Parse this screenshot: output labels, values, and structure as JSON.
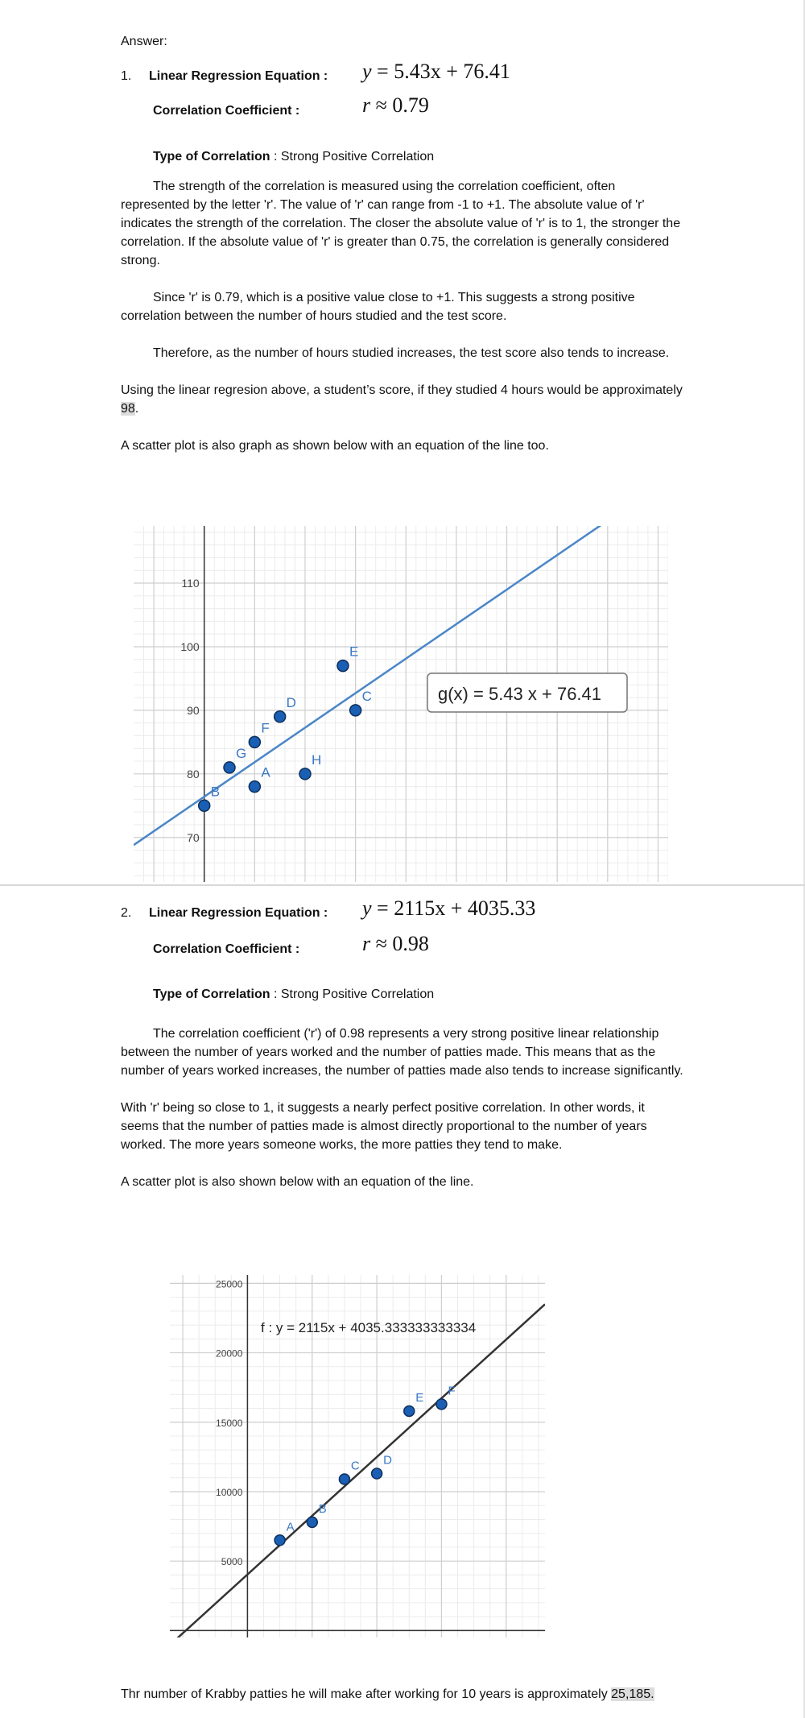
{
  "answer_label": "Answer:",
  "q1": {
    "number": "1.",
    "regression_label": "Linear Regression Equation :",
    "regression_eq": {
      "lhs": "y",
      "rhs": "= 5.43x + 76.41"
    },
    "corr_label": "Correlation Coefficient :",
    "corr_eq": {
      "lhs": "r",
      "rhs": "≈ 0.79"
    },
    "type_label": "Type of Correlation",
    "type_value": " : Strong Positive Correlation",
    "para1": "The strength of the correlation is measured using the correlation coefficient, often represented by the letter 'r'. The value of 'r' can range from -1 to +1. The absolute value of 'r' indicates the strength of the correlation. The closer the absolute value of 'r' is to 1, the stronger the correlation. If the absolute value of 'r' is greater than 0.75, the correlation is generally considered strong.",
    "para2": "Since 'r' is 0.79, which is a positive value close to +1. This suggests a strong positive correlation between the number of hours studied and the test score.",
    "para3": "Therefore, as the number of hours studied increases, the test score also tends to increase.",
    "para4_pre": "Using the linear regresion above, a student’s score, if they studied 4 hours would be approximately ",
    "para4_value": "98",
    "para4_post": ".",
    "para5": "A scatter plot is also graph as shown below with an equation of the line too."
  },
  "q2": {
    "number": "2.",
    "regression_label": "Linear Regression Equation :",
    "regression_eq": {
      "lhs": "y",
      "rhs": "= 2115x + 4035.33"
    },
    "corr_label": "Correlation Coefficient :",
    "corr_eq": {
      "lhs": "r",
      "rhs": "≈ 0.98"
    },
    "type_label": "Type of Correlation",
    "type_value": " : Strong Positive Correlation",
    "para1": "The correlation coefficient ('r') of 0.98 represents a very strong positive linear relationship between the number of years worked and the number of patties made. This means that as the number of years worked increases, the number of patties made also tends to increase significantly.",
    "para2": "With 'r' being so close to 1, it suggests a nearly perfect positive correlation. In other words, it seems that the number of patties made is almost directly proportional to the number of years worked. The more years someone works, the more patties they tend to make.",
    "para3": "A scatter plot is also shown below with an equation of the line.",
    "para4_pre": "Thr number of Krabby patties he will make after working for 10 years is approximately ",
    "para4_value": "25,185.",
    "para4_post": ""
  },
  "chart_data": [
    {
      "type": "scatter",
      "title": "",
      "xlabel": "",
      "ylabel": "",
      "xlim": [
        -1.4,
        9.2
      ],
      "ylim": [
        63,
        119
      ],
      "grid": true,
      "y_ticks": [
        70,
        80,
        90,
        100,
        110
      ],
      "x_ticks": [],
      "point_color": "#1a5fb4",
      "line_color": "#4a86c8",
      "line": {
        "slope": 5.43,
        "intercept": 76.41,
        "label": "g(x)  =  5.43 x + 76.41"
      },
      "points": [
        {
          "label": "A",
          "x": 1,
          "y": 78
        },
        {
          "label": "B",
          "x": 0,
          "y": 75
        },
        {
          "label": "C",
          "x": 3,
          "y": 90
        },
        {
          "label": "D",
          "x": 1.5,
          "y": 89
        },
        {
          "label": "E",
          "x": 2.75,
          "y": 97
        },
        {
          "label": "F",
          "x": 1,
          "y": 85
        },
        {
          "label": "G",
          "x": 0.5,
          "y": 81
        },
        {
          "label": "H",
          "x": 2,
          "y": 80
        }
      ]
    },
    {
      "type": "scatter",
      "title": "",
      "xlabel": "",
      "ylabel": "",
      "xlim": [
        -2.4,
        9.2
      ],
      "ylim": [
        -500,
        25600
      ],
      "grid": true,
      "y_ticks": [
        5000,
        10000,
        15000,
        20000,
        25000
      ],
      "x_ticks": [
        -2,
        0,
        2,
        4,
        6,
        8
      ],
      "point_color": "#1a5fb4",
      "line_color": "#333333",
      "line": {
        "slope": 2115,
        "intercept": 4035.333333333334,
        "label": "f : y  =  2115x + 4035.333333333334"
      },
      "points": [
        {
          "label": "A",
          "x": 1,
          "y": 6500
        },
        {
          "label": "B",
          "x": 2,
          "y": 7800
        },
        {
          "label": "C",
          "x": 3,
          "y": 10900
        },
        {
          "label": "D",
          "x": 4,
          "y": 11300
        },
        {
          "label": "E",
          "x": 5,
          "y": 15800
        },
        {
          "label": "F",
          "x": 6,
          "y": 16300
        }
      ]
    }
  ]
}
